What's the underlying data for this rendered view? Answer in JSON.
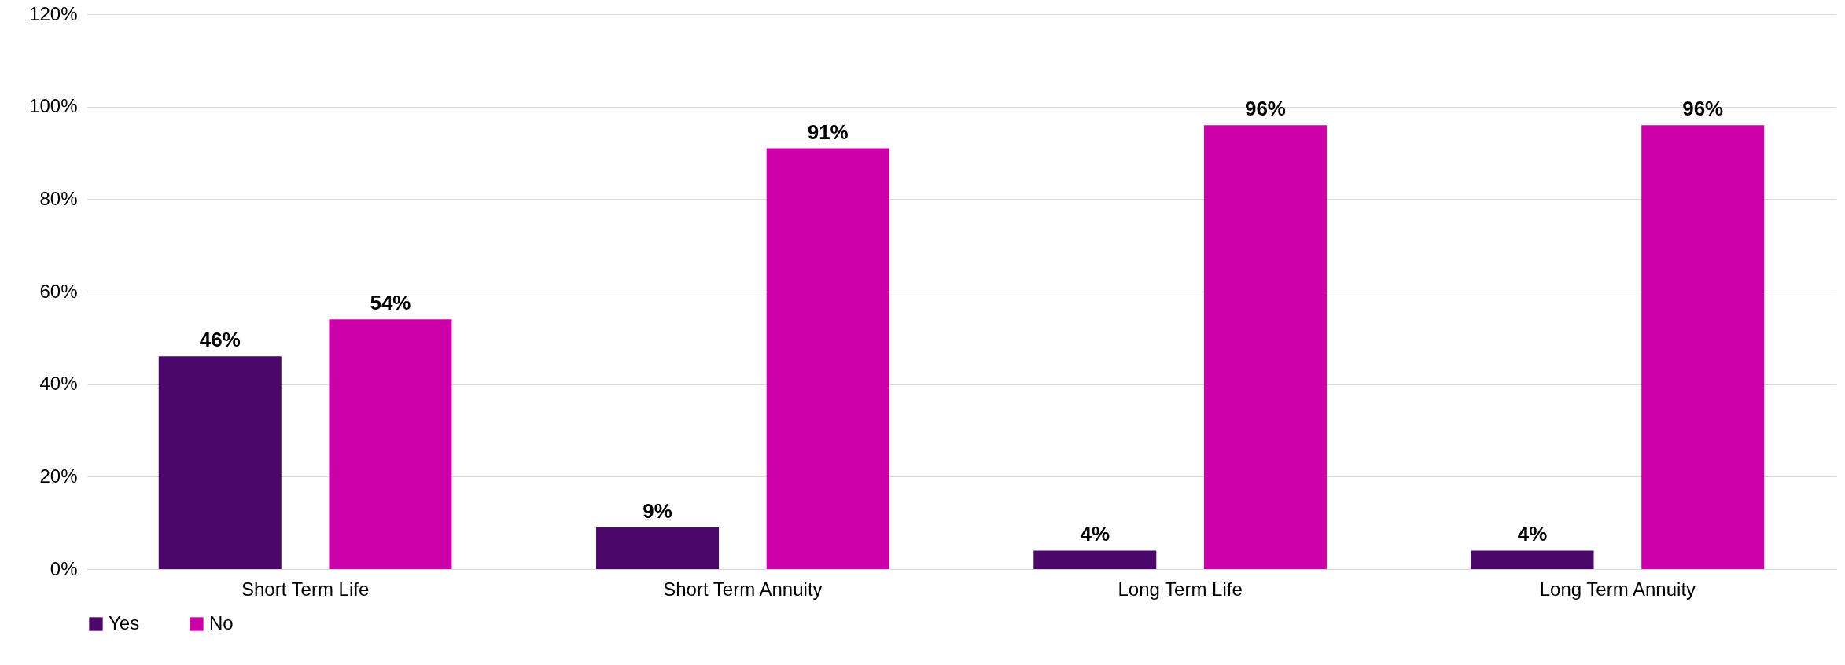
{
  "chart_data": {
    "type": "bar",
    "categories": [
      "Short Term Life",
      "Short Term Annuity",
      "Long Term Life",
      "Long Term Annuity"
    ],
    "series": [
      {
        "name": "Yes",
        "color": "#4b0769",
        "values": [
          46,
          9,
          4,
          4
        ],
        "value_labels": [
          "46%",
          "9%",
          "4%",
          "4%"
        ]
      },
      {
        "name": "No",
        "color": "#cc00a8",
        "values": [
          54,
          91,
          96,
          96
        ],
        "value_labels": [
          "54%",
          "91%",
          "96%",
          "96%"
        ]
      }
    ],
    "ylim": [
      0,
      120
    ],
    "yticks": [
      {
        "value": 0,
        "label": "0%"
      },
      {
        "value": 20,
        "label": "20%"
      },
      {
        "value": 40,
        "label": "40%"
      },
      {
        "value": 60,
        "label": "60%"
      },
      {
        "value": 80,
        "label": "80%"
      },
      {
        "value": 100,
        "label": "100%"
      },
      {
        "value": 120,
        "label": "120%"
      }
    ],
    "grid": "y",
    "legend": "bottom"
  }
}
